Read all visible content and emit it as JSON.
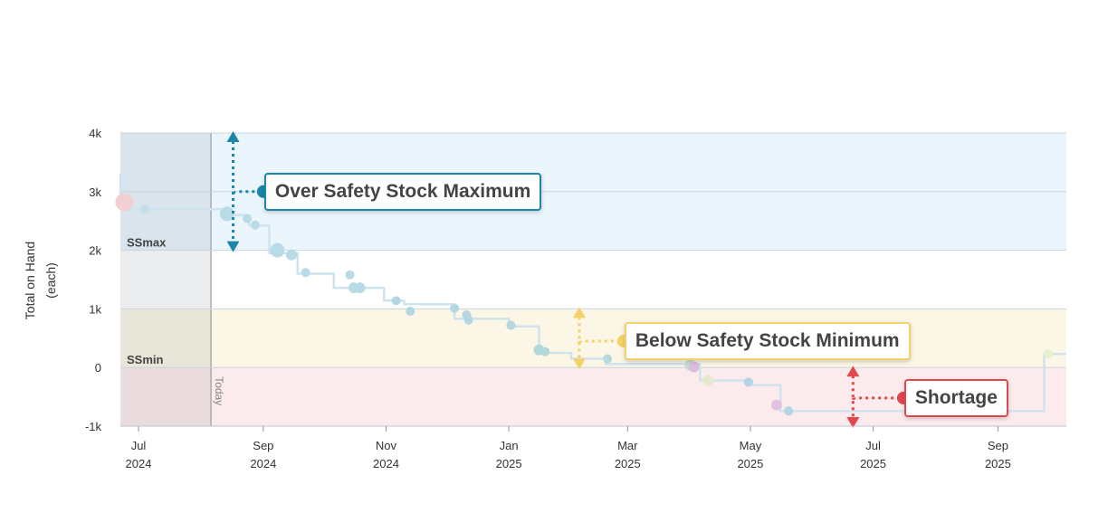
{
  "chart_data": {
    "type": "line",
    "ylabel": [
      "Total on Hand",
      "(each)"
    ],
    "ylim": [
      -1000,
      4000
    ],
    "y_ticks": [
      {
        "value": -1000,
        "label": "-1k"
      },
      {
        "value": 0,
        "label": "0"
      },
      {
        "value": 1000,
        "label": "1k"
      },
      {
        "value": 2000,
        "label": "2k"
      },
      {
        "value": 3000,
        "label": "3k"
      },
      {
        "value": 4000,
        "label": "4k"
      }
    ],
    "x_ticks": [
      {
        "date": "2024-07-01",
        "month": "Jul",
        "year": "2024"
      },
      {
        "date": "2024-09-01",
        "month": "Sep",
        "year": "2024"
      },
      {
        "date": "2024-11-01",
        "month": "Nov",
        "year": "2024"
      },
      {
        "date": "2025-01-01",
        "month": "Jan",
        "year": "2025"
      },
      {
        "date": "2025-03-01",
        "month": "Mar",
        "year": "2025"
      },
      {
        "date": "2025-05-01",
        "month": "May",
        "year": "2025"
      },
      {
        "date": "2025-07-01",
        "month": "Jul",
        "year": "2025"
      },
      {
        "date": "2025-09-01",
        "month": "Sep",
        "year": "2025"
      }
    ],
    "xlim": [
      "2024-06-22",
      "2025-10-05"
    ],
    "today": {
      "date": "2024-08-06",
      "label": "Today"
    },
    "bands": [
      {
        "name": "over",
        "from": 2000,
        "to": 4000,
        "color": "#eaf5fc"
      },
      {
        "name": "ok",
        "from": 1000,
        "to": 2000,
        "color": "#ffffff"
      },
      {
        "name": "under",
        "from": 0,
        "to": 1000,
        "color": "#fbf6e6"
      },
      {
        "name": "shortage",
        "from": -1000,
        "to": 0,
        "color": "#fcebec"
      }
    ],
    "band_labels": [
      {
        "text": "SSmax",
        "value": 2000
      },
      {
        "text": "SSmin",
        "value": 0
      }
    ],
    "line_color": "#cfe3ee",
    "line": [
      {
        "date": "2024-06-22",
        "value": 2800
      },
      {
        "date": "2024-06-22",
        "value": 3300
      },
      {
        "date": "2024-06-22",
        "value": 2700
      },
      {
        "date": "2024-08-15",
        "value": 2700
      },
      {
        "date": "2024-08-15",
        "value": 2600
      },
      {
        "date": "2024-08-25",
        "value": 2600
      },
      {
        "date": "2024-08-25",
        "value": 2420
      },
      {
        "date": "2024-09-04",
        "value": 2420
      },
      {
        "date": "2024-09-04",
        "value": 1950
      },
      {
        "date": "2024-09-18",
        "value": 1950
      },
      {
        "date": "2024-09-18",
        "value": 1600
      },
      {
        "date": "2024-10-06",
        "value": 1600
      },
      {
        "date": "2024-10-06",
        "value": 1360
      },
      {
        "date": "2024-10-31",
        "value": 1360
      },
      {
        "date": "2024-10-31",
        "value": 1140
      },
      {
        "date": "2024-11-10",
        "value": 1140
      },
      {
        "date": "2024-11-10",
        "value": 1080
      },
      {
        "date": "2024-12-05",
        "value": 1080
      },
      {
        "date": "2024-12-05",
        "value": 830
      },
      {
        "date": "2025-01-01",
        "value": 830
      },
      {
        "date": "2025-01-01",
        "value": 700
      },
      {
        "date": "2025-01-16",
        "value": 700
      },
      {
        "date": "2025-01-16",
        "value": 250
      },
      {
        "date": "2025-02-01",
        "value": 250
      },
      {
        "date": "2025-02-01",
        "value": 150
      },
      {
        "date": "2025-02-18",
        "value": 150
      },
      {
        "date": "2025-02-18",
        "value": 60
      },
      {
        "date": "2025-04-06",
        "value": 60
      },
      {
        "date": "2025-04-06",
        "value": -220
      },
      {
        "date": "2025-05-02",
        "value": -220
      },
      {
        "date": "2025-05-02",
        "value": -300
      },
      {
        "date": "2025-05-16",
        "value": -300
      },
      {
        "date": "2025-05-16",
        "value": -740
      },
      {
        "date": "2025-09-24",
        "value": -740
      },
      {
        "date": "2025-09-24",
        "value": 230
      },
      {
        "date": "2025-10-05",
        "value": 230
      }
    ],
    "points": [
      {
        "date": "2024-06-24",
        "value": 2820,
        "size": 10,
        "color": "#f2cfd3"
      },
      {
        "date": "2024-07-04",
        "value": 2700,
        "size": 5,
        "color": "#c4dfea"
      },
      {
        "date": "2024-08-14",
        "value": 2620,
        "size": 8,
        "color": "#b9dbe8"
      },
      {
        "date": "2024-08-24",
        "value": 2540,
        "size": 5,
        "color": "#b9dbe8"
      },
      {
        "date": "2024-08-28",
        "value": 2430,
        "size": 5,
        "color": "#b9dbe8"
      },
      {
        "date": "2024-09-08",
        "value": 2000,
        "size": 8,
        "color": "#b9dbe8"
      },
      {
        "date": "2024-09-15",
        "value": 1920,
        "size": 6,
        "color": "#b9dbe8"
      },
      {
        "date": "2024-09-22",
        "value": 1620,
        "size": 5,
        "color": "#b9dbe8"
      },
      {
        "date": "2024-10-14",
        "value": 1580,
        "size": 5,
        "color": "#b9dbe8"
      },
      {
        "date": "2024-10-16",
        "value": 1360,
        "size": 6,
        "color": "#b9dbe8"
      },
      {
        "date": "2024-10-19",
        "value": 1360,
        "size": 6,
        "color": "#b9dbe8"
      },
      {
        "date": "2024-11-06",
        "value": 1140,
        "size": 5,
        "color": "#b2d6e2"
      },
      {
        "date": "2024-11-13",
        "value": 960,
        "size": 5,
        "color": "#b2d6e2"
      },
      {
        "date": "2024-12-05",
        "value": 1010,
        "size": 5,
        "color": "#b4d8e2"
      },
      {
        "date": "2024-12-11",
        "value": 900,
        "size": 5,
        "color": "#b4d8e2"
      },
      {
        "date": "2024-12-12",
        "value": 810,
        "size": 5,
        "color": "#b4d8e2"
      },
      {
        "date": "2025-01-02",
        "value": 720,
        "size": 5,
        "color": "#b4d8de"
      },
      {
        "date": "2025-01-16",
        "value": 300,
        "size": 6,
        "color": "#b1d8db"
      },
      {
        "date": "2025-01-19",
        "value": 270,
        "size": 5,
        "color": "#b1d8db"
      },
      {
        "date": "2025-02-19",
        "value": 150,
        "size": 5,
        "color": "#b7dbdd"
      },
      {
        "date": "2025-04-01",
        "value": 40,
        "size": 6,
        "color": "#c5dfd1"
      },
      {
        "date": "2025-04-03",
        "value": 10,
        "size": 6,
        "color": "#dcbcdd"
      },
      {
        "date": "2025-04-10",
        "value": -220,
        "size": 6,
        "color": "#e4ead0"
      },
      {
        "date": "2025-04-30",
        "value": -250,
        "size": 5,
        "color": "#b4d4e4"
      },
      {
        "date": "2025-05-14",
        "value": -640,
        "size": 6,
        "color": "#e3c2e1"
      },
      {
        "date": "2025-05-20",
        "value": -740,
        "size": 5,
        "color": "#b4d4e4"
      },
      {
        "date": "2025-09-26",
        "value": 230,
        "size": 5,
        "color": "#e8efd0"
      }
    ],
    "annotations": [
      {
        "text": "Over Safety Stock Maximum",
        "color": "#1a86a8",
        "arrow_date": "2024-08-17",
        "arrow_from": 4000,
        "arrow_to": 2000,
        "dot_date": "2024-09-01",
        "dot_value": 3000
      },
      {
        "text": "Below Safety Stock Minimum",
        "color": "#f5d16a",
        "arrow_date": "2025-02-05",
        "arrow_from": 1000,
        "arrow_to": 0,
        "dot_date": "2025-02-27",
        "dot_value": 450
      },
      {
        "text": "Shortage",
        "color": "#e0484e",
        "arrow_date": "2025-06-21",
        "arrow_from": 0,
        "arrow_to": -1000,
        "dot_date": "2025-07-16",
        "dot_value": -520
      }
    ]
  }
}
